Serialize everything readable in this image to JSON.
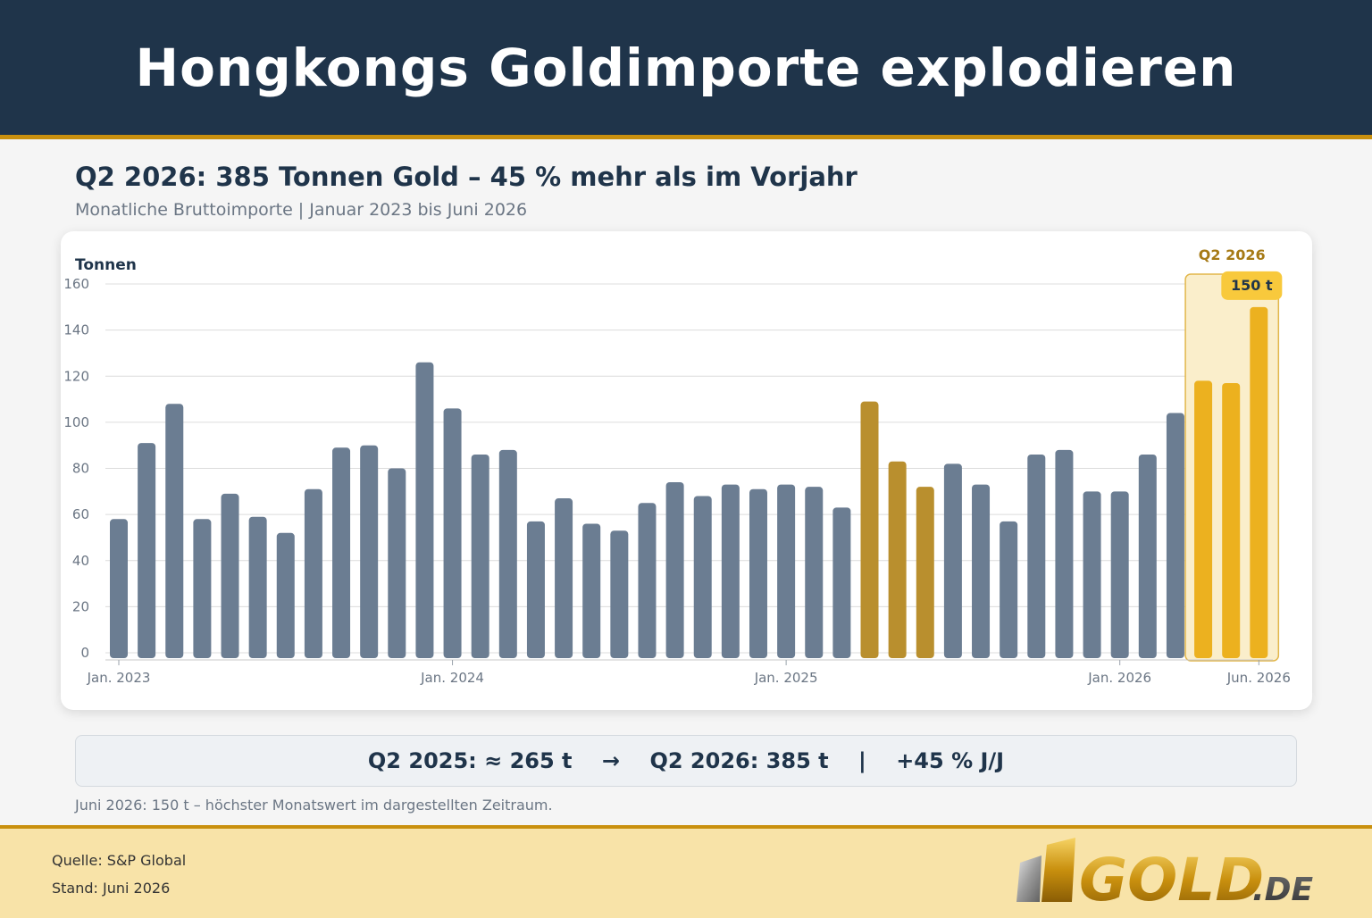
{
  "header": {
    "title": "Hongkongs Goldimporte explodieren"
  },
  "headline": "Q2 2026: 385 Tonnen Gold – 45 % mehr als im Vorjahr",
  "subheadline": "Monatliche Bruttoimporte | Januar 2023 bis Juni 2026",
  "summary": "Q2 2025: ≈ 265 t    →    Q2 2026: 385 t    |    +45 % J/J",
  "note": "Juni 2026: 150 t – höchster Monatswert im dargestellten Zeitraum.",
  "footer": {
    "source": "Quelle: S&P Global",
    "date": "Stand: Juni 2026",
    "logo_text": "GOLD",
    "logo_suffix": ".DE"
  },
  "colors": {
    "normal": "#6b7d92",
    "q2_2025": "#b98f2e",
    "q2_2026": "#ecb11f",
    "highlight_fill": "#faeecb",
    "highlight_stroke": "#e2b64a",
    "label_bg": "#f8c93c",
    "header_bg": "#1f344a",
    "accent": "#c9900e"
  },
  "chart_data": {
    "type": "bar",
    "ylabel": "Tonnen",
    "ylim": [
      0,
      160
    ],
    "yticks": [
      0,
      20,
      40,
      60,
      80,
      100,
      120,
      140,
      160
    ],
    "grid": true,
    "xtick_labels": [
      {
        "index": 0,
        "label": "Jan. 2023"
      },
      {
        "index": 12,
        "label": "Jan. 2024"
      },
      {
        "index": 24,
        "label": "Jan. 2025"
      },
      {
        "index": 36,
        "label": "Jan. 2026"
      },
      {
        "index": 41,
        "label": "Jun. 2026"
      }
    ],
    "values": [
      58,
      91,
      108,
      58,
      69,
      59,
      52,
      71,
      89,
      90,
      80,
      126,
      106,
      86,
      88,
      57,
      67,
      56,
      53,
      65,
      74,
      68,
      73,
      71,
      73,
      72,
      63,
      109,
      83,
      72,
      82,
      73,
      57,
      86,
      88,
      70,
      70,
      86,
      104,
      118,
      117,
      150
    ],
    "highlight_q2_2025": [
      27,
      28,
      29
    ],
    "highlight_q2_2026": [
      39,
      40,
      41
    ],
    "highlight_label": "Q2 2026",
    "peak_label": "150 t",
    "peak_index": 41
  }
}
